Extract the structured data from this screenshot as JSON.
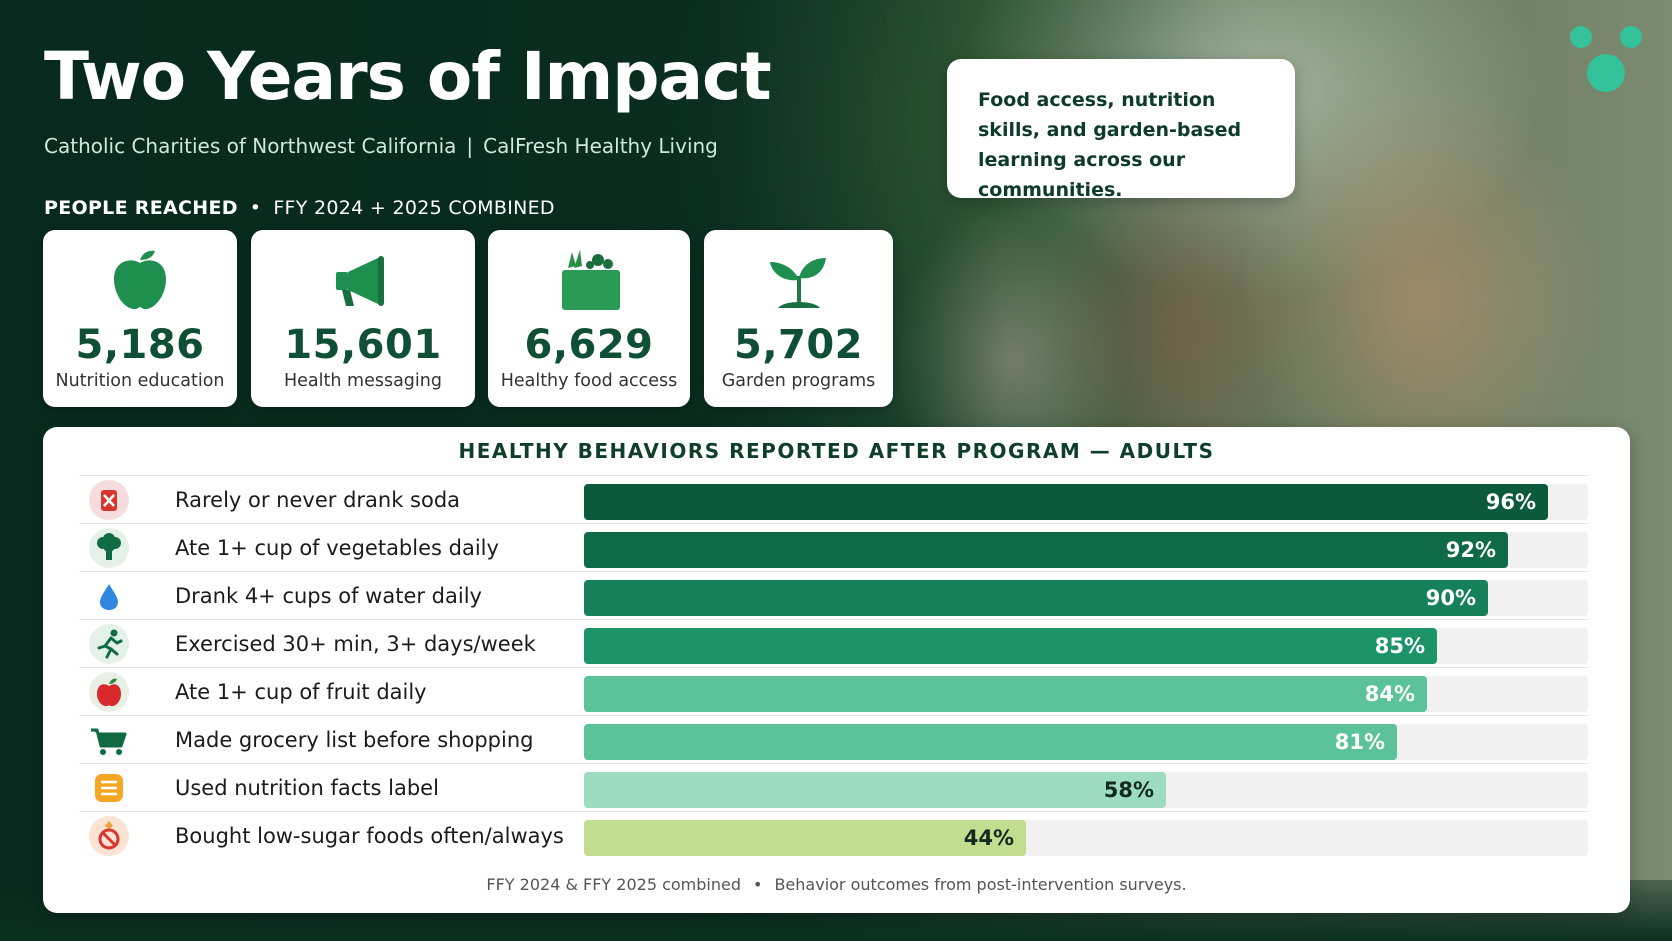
{
  "header": {
    "title": "Two Years of Impact",
    "org": "Catholic Charities of Northwest California",
    "separator": "|",
    "program": "CalFresh Healthy Living"
  },
  "callout": {
    "text": "Food access, nutrition skills, and garden-based learning across our communities."
  },
  "reach": {
    "heading": "PEOPLE REACHED",
    "bullet": "•",
    "period": "FFY 2024 + 2025 COMBINED",
    "stats": [
      {
        "value": "5,186",
        "label": "Nutrition education",
        "icon": "apple-icon"
      },
      {
        "value": "15,601",
        "label": "Health messaging",
        "icon": "megaphone-icon"
      },
      {
        "value": "6,629",
        "label": "Healthy food access",
        "icon": "produce-crate-icon"
      },
      {
        "value": "5,702",
        "label": "Garden programs",
        "icon": "sprout-icon"
      }
    ]
  },
  "colors": {
    "dark_green": "#0c5a3c",
    "mid_green": "#14845a",
    "light_green": "#5cc29a",
    "pale_green": "#9ddcc0",
    "lime": "#c2dd8f"
  },
  "chart_data": {
    "type": "bar",
    "orientation": "horizontal",
    "title": "HEALTHY BEHAVIORS REPORTED AFTER PROGRAM — ADULTS",
    "unit": "%",
    "xlim": [
      0,
      100
    ],
    "categories": [
      "Rarely or never drank soda",
      "Ate 1+ cup of vegetables daily",
      "Drank 4+ cups of water daily",
      "Exercised 30+ min, 3+ days/week",
      "Ate 1+ cup of fruit daily",
      "Made grocery list before shopping",
      "Used nutrition facts label",
      "Bought low-sugar foods often/always"
    ],
    "values": [
      96,
      92,
      90,
      85,
      84,
      81,
      58,
      44
    ],
    "labels": [
      "96%",
      "92%",
      "90%",
      "85%",
      "84%",
      "81%",
      "58%",
      "44%"
    ],
    "bar_colors": [
      "#0c5a3c",
      "#0f6b47",
      "#15805a",
      "#1c9467",
      "#5cc29a",
      "#5cc29a",
      "#9ddcc0",
      "#c2dd8f"
    ],
    "icons": [
      "no-soda-icon",
      "broccoli-icon",
      "water-drop-icon",
      "runner-icon",
      "red-apple-icon",
      "shopping-cart-icon",
      "nutrition-label-icon",
      "no-sugar-icon"
    ]
  },
  "footnote": {
    "left": "FFY 2024 & FFY 2025 combined",
    "bullet": "•",
    "right": "Behavior outcomes from post-intervention surveys."
  }
}
